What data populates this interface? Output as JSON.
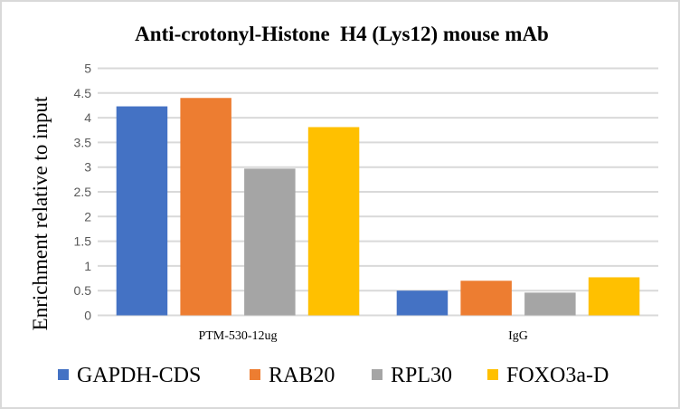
{
  "chart_data": {
    "type": "bar",
    "title": "Anti-crotonyl-Histone  H4 (Lys12) mouse mAb",
    "xlabel": "",
    "ylabel": "Enrichment relative to input",
    "ylim": [
      0,
      5
    ],
    "yticks": [
      "0",
      "0.5",
      "1",
      "1.5",
      "2",
      "2.5",
      "3",
      "3.5",
      "4",
      "4.5",
      "5"
    ],
    "ytick_values": [
      0,
      0.5,
      1,
      1.5,
      2,
      2.5,
      3,
      3.5,
      4,
      4.5,
      5
    ],
    "grid": true,
    "legend_position": "bottom",
    "categories": [
      "PTM-530-12ug",
      "IgG"
    ],
    "series": [
      {
        "name": "GAPDH-CDS",
        "color": "#4472c4",
        "values": [
          4.23,
          0.5
        ]
      },
      {
        "name": "RAB20",
        "color": "#ed7d31",
        "values": [
          4.4,
          0.7
        ]
      },
      {
        "name": "RPL30",
        "color": "#a5a5a5",
        "values": [
          2.97,
          0.46
        ]
      },
      {
        "name": "FOXO3a-D",
        "color": "#ffc000",
        "values": [
          3.81,
          0.77
        ]
      }
    ]
  }
}
